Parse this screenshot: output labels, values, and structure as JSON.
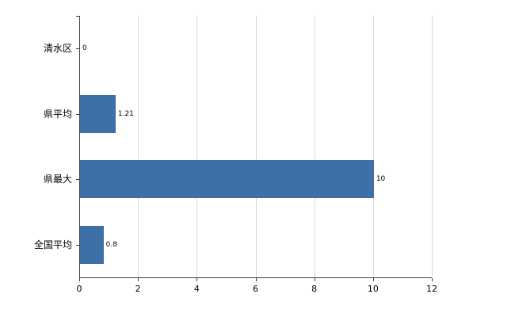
{
  "chart_data": {
    "type": "bar",
    "orientation": "horizontal",
    "title": "",
    "xlabel": "",
    "ylabel": "",
    "categories": [
      "清水区",
      "県平均",
      "県最大",
      "全国平均"
    ],
    "values": [
      0,
      1.21,
      10,
      0.8
    ],
    "value_labels": [
      "0",
      "1.21",
      "10",
      "0.8"
    ],
    "x_ticks": [
      0,
      2,
      4,
      6,
      8,
      10,
      12
    ],
    "x_tick_labels": [
      "0",
      "2",
      "4",
      "6",
      "8",
      "10",
      "12"
    ],
    "xlim": [
      0,
      12
    ],
    "grid": true,
    "legend": false,
    "bar_color": "#3e6fa7",
    "axis_color": "#404040",
    "grid_color": "#d9d9d9",
    "background_color": "#ffffff"
  }
}
